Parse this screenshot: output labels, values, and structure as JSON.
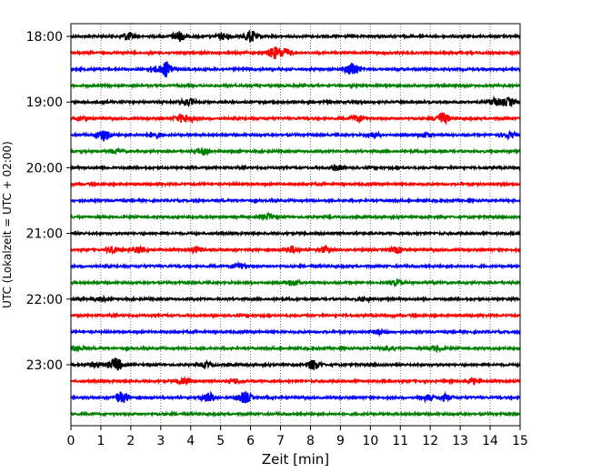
{
  "chart_data": {
    "type": "line",
    "title": "",
    "xlabel": "Zeit  [min]",
    "ylabel": "UTC (Lokalzeit = UTC + 02:00)",
    "xlim": [
      0,
      15
    ],
    "x_ticks": [
      0,
      1,
      2,
      3,
      4,
      5,
      6,
      7,
      8,
      9,
      10,
      11,
      12,
      13,
      14,
      15
    ],
    "x_tick_labels": [
      "0",
      "1",
      "2",
      "3",
      "4",
      "5",
      "6",
      "7",
      "8",
      "9",
      "10",
      "11",
      "12",
      "13",
      "14",
      "15"
    ],
    "y_ticks": [
      "18:00",
      "19:00",
      "20:00",
      "21:00",
      "22:00",
      "23:00"
    ],
    "grid": "vertical dotted at each minute",
    "colors_cycle": [
      "#000000",
      "#ff0000",
      "#0000ff",
      "#008000"
    ],
    "traces_count": 24,
    "trace_interval_minutes": 15,
    "traces": [
      {
        "start": "18:00",
        "color": "#000000",
        "events": [
          [
            1.9,
            2.0
          ],
          [
            3.6,
            2.5
          ],
          [
            5.1,
            1.5
          ],
          [
            6.0,
            3.0
          ]
        ]
      },
      {
        "start": "18:15",
        "color": "#ff0000",
        "events": [
          [
            6.8,
            3.0
          ],
          [
            7.1,
            2.5
          ]
        ]
      },
      {
        "start": "18:30",
        "color": "#0000ff",
        "events": [
          [
            3.2,
            4.0
          ],
          [
            9.4,
            3.5
          ],
          [
            2.8,
            1.5
          ]
        ]
      },
      {
        "start": "18:45",
        "color": "#008000",
        "events": []
      },
      {
        "start": "19:00",
        "color": "#000000",
        "events": [
          [
            3.9,
            1.5
          ],
          [
            14.2,
            2.0
          ],
          [
            14.6,
            2.0
          ]
        ]
      },
      {
        "start": "19:15",
        "color": "#ff0000",
        "events": [
          [
            3.7,
            2.0
          ],
          [
            3.9,
            2.0
          ],
          [
            9.6,
            1.5
          ],
          [
            12.4,
            3.0
          ],
          [
            0.4,
            1.0
          ]
        ]
      },
      {
        "start": "19:30",
        "color": "#0000ff",
        "events": [
          [
            1.1,
            3.0
          ],
          [
            2.8,
            1.5
          ],
          [
            10.1,
            1.2
          ],
          [
            11.8,
            1.2
          ],
          [
            14.6,
            1.5
          ]
        ]
      },
      {
        "start": "19:45",
        "color": "#008000",
        "events": [
          [
            4.4,
            1.5
          ],
          [
            1.5,
            1.0
          ]
        ]
      },
      {
        "start": "20:00",
        "color": "#000000",
        "events": [
          [
            8.9,
            1.2
          ]
        ]
      },
      {
        "start": "20:15",
        "color": "#ff0000",
        "events": []
      },
      {
        "start": "20:30",
        "color": "#0000ff",
        "events": []
      },
      {
        "start": "20:45",
        "color": "#008000",
        "events": [
          [
            6.6,
            1.5
          ]
        ]
      },
      {
        "start": "21:00",
        "color": "#000000",
        "events": []
      },
      {
        "start": "21:15",
        "color": "#ff0000",
        "events": [
          [
            1.4,
            1.5
          ],
          [
            2.3,
            1.8
          ],
          [
            4.2,
            1.5
          ],
          [
            7.4,
            1.8
          ],
          [
            8.5,
            1.5
          ],
          [
            10.9,
            1.5
          ]
        ]
      },
      {
        "start": "21:30",
        "color": "#0000ff",
        "events": [
          [
            5.6,
            1.5
          ]
        ]
      },
      {
        "start": "21:45",
        "color": "#008000",
        "events": [
          [
            7.4,
            1.5
          ],
          [
            10.9,
            1.2
          ]
        ]
      },
      {
        "start": "22:00",
        "color": "#000000",
        "events": [
          [
            1.0,
            1.0
          ],
          [
            9.8,
            1.0
          ]
        ]
      },
      {
        "start": "22:15",
        "color": "#ff0000",
        "events": []
      },
      {
        "start": "22:30",
        "color": "#0000ff",
        "events": [
          [
            10.3,
            1.2
          ]
        ]
      },
      {
        "start": "22:45",
        "color": "#008000",
        "events": [
          [
            0.2,
            1.2
          ],
          [
            10.6,
            1.2
          ],
          [
            12.2,
            1.2
          ]
        ]
      },
      {
        "start": "23:00",
        "color": "#000000",
        "events": [
          [
            1.5,
            3.5
          ],
          [
            4.5,
            1.2
          ],
          [
            8.1,
            2.5
          ],
          [
            0.8,
            1.0
          ]
        ]
      },
      {
        "start": "23:15",
        "color": "#ff0000",
        "events": [
          [
            3.8,
            1.2
          ],
          [
            5.5,
            1.2
          ],
          [
            13.4,
            1.5
          ]
        ]
      },
      {
        "start": "23:30",
        "color": "#0000ff",
        "events": [
          [
            1.7,
            3.0
          ],
          [
            4.6,
            2.5
          ],
          [
            5.8,
            3.0
          ],
          [
            11.9,
            1.5
          ],
          [
            12.5,
            1.5
          ]
        ]
      },
      {
        "start": "23:45",
        "color": "#008000",
        "events": []
      }
    ]
  }
}
